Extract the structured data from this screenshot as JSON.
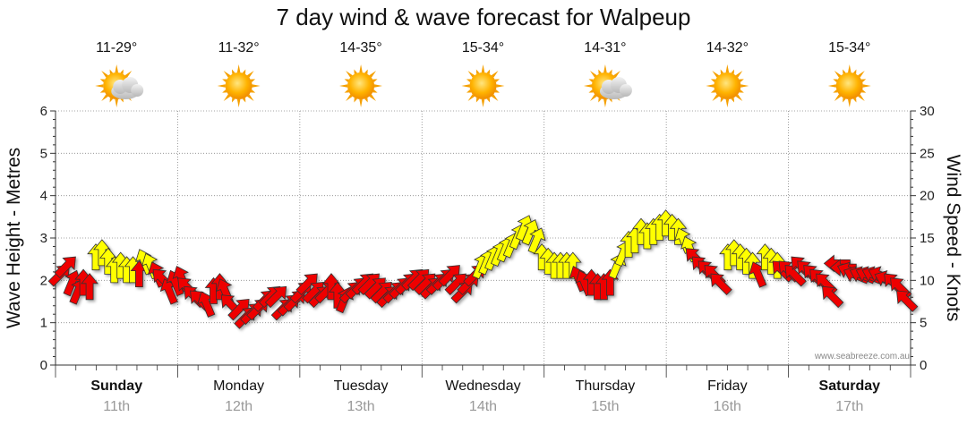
{
  "colors": {
    "strong": "#ee0000",
    "moderate": "#ffff00",
    "arrow_outline": "#333333",
    "grid": "#888888"
  },
  "chart_data": {
    "type": "line",
    "title": "7 day wind & wave forecast for Walpeup",
    "ylabel_left": "Wave Height - Metres",
    "ylabel_right": "Wind Speed - Knots",
    "ylim_left": [
      0,
      6
    ],
    "ylim_right": [
      0,
      30
    ],
    "yticks_left": [
      "0",
      "1",
      "2",
      "3",
      "4",
      "5",
      "6"
    ],
    "yticks_right": [
      "0",
      "5",
      "10",
      "15",
      "20",
      "25",
      "30"
    ],
    "days": [
      {
        "day": "Sunday",
        "date": "11th",
        "temp": "11-29°",
        "icon": "partly-cloudy-icon",
        "bold": true
      },
      {
        "day": "Monday",
        "date": "12th",
        "temp": "11-32°",
        "icon": "sun-icon",
        "bold": false
      },
      {
        "day": "Tuesday",
        "date": "13th",
        "temp": "14-35°",
        "icon": "sun-icon",
        "bold": false
      },
      {
        "day": "Wednesday",
        "date": "14th",
        "temp": "15-34°",
        "icon": "sun-icon",
        "bold": false
      },
      {
        "day": "Thursday",
        "date": "15th",
        "temp": "14-31°",
        "icon": "partly-cloudy-icon",
        "bold": false
      },
      {
        "day": "Friday",
        "date": "16th",
        "temp": "14-32°",
        "icon": "sun-icon",
        "bold": false
      },
      {
        "day": "Saturday",
        "date": "17th",
        "temp": "15-34°",
        "icon": "sun-icon",
        "bold": true
      }
    ],
    "wind_units": "knots",
    "wind_series": [
      {
        "speed": 10.5,
        "dir": "SW"
      },
      {
        "speed": 11.5,
        "dir": "SW"
      },
      {
        "speed": 9.5,
        "dir": "SSW"
      },
      {
        "speed": 8.5,
        "dir": "SSW"
      },
      {
        "speed": 9.5,
        "dir": "S"
      },
      {
        "speed": 9.0,
        "dir": "S"
      },
      {
        "speed": 12.5,
        "dir": "S"
      },
      {
        "speed": 13.0,
        "dir": "S"
      },
      {
        "speed": 12.0,
        "dir": "S"
      },
      {
        "speed": 11.0,
        "dir": "S"
      },
      {
        "speed": 11.5,
        "dir": "S"
      },
      {
        "speed": 11.0,
        "dir": "S"
      },
      {
        "speed": 11.0,
        "dir": "S"
      },
      {
        "speed": 10.5,
        "dir": "S"
      },
      {
        "speed": 12.0,
        "dir": "SSE"
      },
      {
        "speed": 11.5,
        "dir": "SSE"
      },
      {
        "speed": 10.5,
        "dir": "SSE"
      },
      {
        "speed": 10.0,
        "dir": "SE"
      },
      {
        "speed": 8.5,
        "dir": "SSE"
      },
      {
        "speed": 9.5,
        "dir": "SSE"
      },
      {
        "speed": 10.0,
        "dir": "SSE"
      },
      {
        "speed": 9.0,
        "dir": "SE"
      },
      {
        "speed": 8.0,
        "dir": "SE"
      },
      {
        "speed": 7.5,
        "dir": "SE"
      },
      {
        "speed": 7.0,
        "dir": "SSE"
      },
      {
        "speed": 8.5,
        "dir": "S"
      },
      {
        "speed": 9.0,
        "dir": "S"
      },
      {
        "speed": 8.5,
        "dir": "SSE"
      },
      {
        "speed": 7.0,
        "dir": "SE"
      },
      {
        "speed": 6.5,
        "dir": "SW"
      },
      {
        "speed": 5.5,
        "dir": "SW"
      },
      {
        "speed": 6.0,
        "dir": "SW"
      },
      {
        "speed": 6.5,
        "dir": "SW"
      },
      {
        "speed": 7.5,
        "dir": "SW"
      },
      {
        "speed": 8.0,
        "dir": "SW"
      },
      {
        "speed": 8.0,
        "dir": "SW"
      },
      {
        "speed": 6.5,
        "dir": "SW"
      },
      {
        "speed": 7.0,
        "dir": "SW"
      },
      {
        "speed": 7.5,
        "dir": "SW"
      },
      {
        "speed": 8.5,
        "dir": "SW"
      },
      {
        "speed": 9.5,
        "dir": "SW"
      },
      {
        "speed": 8.5,
        "dir": "SW"
      },
      {
        "speed": 8.0,
        "dir": "SW"
      },
      {
        "speed": 8.5,
        "dir": "SW"
      },
      {
        "speed": 9.0,
        "dir": "S"
      },
      {
        "speed": 8.0,
        "dir": "S"
      },
      {
        "speed": 7.5,
        "dir": "SSW"
      },
      {
        "speed": 8.5,
        "dir": "SW"
      },
      {
        "speed": 9.0,
        "dir": "SW"
      },
      {
        "speed": 9.5,
        "dir": "SW"
      },
      {
        "speed": 9.5,
        "dir": "SW"
      },
      {
        "speed": 9.0,
        "dir": "SW"
      },
      {
        "speed": 8.5,
        "dir": "SW"
      },
      {
        "speed": 8.0,
        "dir": "SW"
      },
      {
        "speed": 8.5,
        "dir": "SW"
      },
      {
        "speed": 9.0,
        "dir": "SW"
      },
      {
        "speed": 9.5,
        "dir": "SW"
      },
      {
        "speed": 10.0,
        "dir": "SW"
      },
      {
        "speed": 10.0,
        "dir": "SW"
      },
      {
        "speed": 9.5,
        "dir": "SW"
      },
      {
        "speed": 9.0,
        "dir": "SW"
      },
      {
        "speed": 9.5,
        "dir": "SW"
      },
      {
        "speed": 10.0,
        "dir": "SW"
      },
      {
        "speed": 10.5,
        "dir": "SW"
      },
      {
        "speed": 9.5,
        "dir": "SW"
      },
      {
        "speed": 8.5,
        "dir": "SW"
      },
      {
        "speed": 9.5,
        "dir": "SW"
      },
      {
        "speed": 10.5,
        "dir": "SW"
      },
      {
        "speed": 11.5,
        "dir": "SSW"
      },
      {
        "speed": 12.0,
        "dir": "SSW"
      },
      {
        "speed": 12.5,
        "dir": "SSW"
      },
      {
        "speed": 13.0,
        "dir": "SSW"
      },
      {
        "speed": 13.5,
        "dir": "SSW"
      },
      {
        "speed": 14.0,
        "dir": "SSW"
      },
      {
        "speed": 15.0,
        "dir": "SSW"
      },
      {
        "speed": 16.0,
        "dir": "SSW"
      },
      {
        "speed": 15.5,
        "dir": "SSW"
      },
      {
        "speed": 14.5,
        "dir": "SSW"
      },
      {
        "speed": 12.5,
        "dir": "S"
      },
      {
        "speed": 12.0,
        "dir": "S"
      },
      {
        "speed": 11.5,
        "dir": "S"
      },
      {
        "speed": 11.5,
        "dir": "S"
      },
      {
        "speed": 11.5,
        "dir": "S"
      },
      {
        "speed": 11.5,
        "dir": "S"
      },
      {
        "speed": 10.0,
        "dir": "SSE"
      },
      {
        "speed": 9.5,
        "dir": "SSE"
      },
      {
        "speed": 9.5,
        "dir": "S"
      },
      {
        "speed": 9.0,
        "dir": "S"
      },
      {
        "speed": 9.0,
        "dir": "S"
      },
      {
        "speed": 9.5,
        "dir": "S"
      },
      {
        "speed": 11.5,
        "dir": "SSW"
      },
      {
        "speed": 13.0,
        "dir": "SSW"
      },
      {
        "speed": 14.0,
        "dir": "S"
      },
      {
        "speed": 14.5,
        "dir": "S"
      },
      {
        "speed": 15.5,
        "dir": "S"
      },
      {
        "speed": 15.0,
        "dir": "S"
      },
      {
        "speed": 15.5,
        "dir": "S"
      },
      {
        "speed": 16.0,
        "dir": "S"
      },
      {
        "speed": 16.5,
        "dir": "S"
      },
      {
        "speed": 16.0,
        "dir": "S"
      },
      {
        "speed": 15.5,
        "dir": "S"
      },
      {
        "speed": 14.5,
        "dir": "SSE"
      },
      {
        "speed": 13.5,
        "dir": "SSE"
      },
      {
        "speed": 12.5,
        "dir": "SE"
      },
      {
        "speed": 11.5,
        "dir": "SE"
      },
      {
        "speed": 11.0,
        "dir": "SE"
      },
      {
        "speed": 10.5,
        "dir": "SE"
      },
      {
        "speed": 9.5,
        "dir": "SE"
      },
      {
        "speed": 12.5,
        "dir": "S"
      },
      {
        "speed": 13.0,
        "dir": "S"
      },
      {
        "speed": 12.5,
        "dir": "S"
      },
      {
        "speed": 12.0,
        "dir": "S"
      },
      {
        "speed": 11.5,
        "dir": "S"
      },
      {
        "speed": 10.5,
        "dir": "SSE"
      },
      {
        "speed": 12.5,
        "dir": "S"
      },
      {
        "speed": 12.0,
        "dir": "S"
      },
      {
        "speed": 11.5,
        "dir": "S"
      },
      {
        "speed": 11.0,
        "dir": "SE"
      },
      {
        "speed": 11.0,
        "dir": "SE"
      },
      {
        "speed": 10.5,
        "dir": "SE"
      },
      {
        "speed": 11.5,
        "dir": "SE"
      },
      {
        "speed": 11.0,
        "dir": "SE"
      },
      {
        "speed": 10.5,
        "dir": "SE"
      },
      {
        "speed": 10.0,
        "dir": "SE"
      },
      {
        "speed": 9.5,
        "dir": "SE"
      },
      {
        "speed": 8.0,
        "dir": "SE"
      },
      {
        "speed": 12.0,
        "dir": "E"
      },
      {
        "speed": 11.5,
        "dir": "E"
      },
      {
        "speed": 11.0,
        "dir": "ESE"
      },
      {
        "speed": 10.5,
        "dir": "ESE"
      },
      {
        "speed": 10.5,
        "dir": "ESE"
      },
      {
        "speed": 10.5,
        "dir": "ESE"
      },
      {
        "speed": 10.5,
        "dir": "ESE"
      },
      {
        "speed": 10.5,
        "dir": "ESE"
      },
      {
        "speed": 10.0,
        "dir": "ESE"
      },
      {
        "speed": 9.5,
        "dir": "SE"
      },
      {
        "speed": 9.0,
        "dir": "SE"
      },
      {
        "speed": 7.5,
        "dir": "SE"
      }
    ],
    "moderate_speed_range_knots": [
      11,
      17
    ],
    "credit": "www.seabreeze.com.au"
  }
}
